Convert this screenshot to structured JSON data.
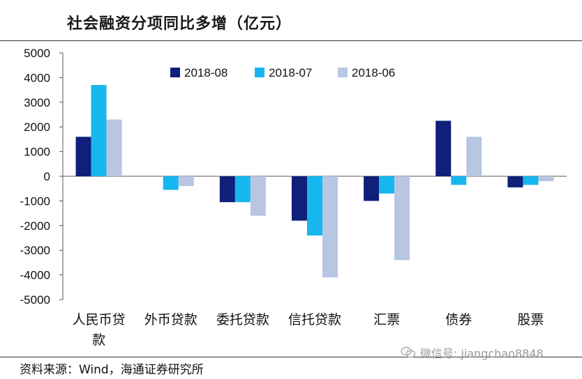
{
  "title": "社会融资分项同比多增（亿元）",
  "source": "资料来源：Wind，海通证券研究所",
  "watermark": "微信号: jiangchao8848",
  "chart_data": {
    "type": "bar",
    "title": "社会融资分项同比多增（亿元）",
    "unit": "亿元",
    "categories": [
      "人民币贷款",
      "外币贷款",
      "委托贷款",
      "信托贷款",
      "汇票",
      "债券",
      "股票"
    ],
    "ylim": [
      -5000,
      5000
    ],
    "yticks": [
      5000,
      4000,
      3000,
      2000,
      1000,
      0,
      -1000,
      -2000,
      -3000,
      -4000,
      -5000
    ],
    "legend_position": "top",
    "grid": false,
    "series": [
      {
        "name": "2018-08",
        "color": "#0f1f7a",
        "values": [
          1600,
          0,
          -1050,
          -1800,
          -1000,
          2250,
          -450
        ]
      },
      {
        "name": "2018-07",
        "color": "#16b7ee",
        "values": [
          3700,
          -550,
          -1050,
          -2400,
          -700,
          -350,
          -350
        ]
      },
      {
        "name": "2018-06",
        "color": "#b7c6e2",
        "values": [
          2300,
          -400,
          -1600,
          -4100,
          -3400,
          1600,
          -200
        ]
      }
    ]
  }
}
